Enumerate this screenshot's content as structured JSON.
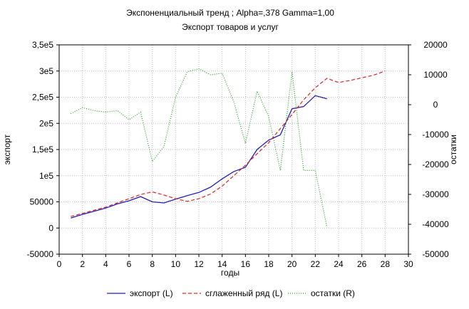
{
  "chart_data": {
    "type": "line",
    "title": "Экспоненциальный тренд ; Alpha=,378 Gamma=1,00",
    "subtitle": "Экспорт товаров и услуг",
    "xlabel": "годы",
    "ylabel_left": "экспорт",
    "ylabel_right": "остатки",
    "xlim": [
      0,
      30
    ],
    "ylim_left": [
      -50000,
      350000
    ],
    "ylim_right": [
      -50000,
      20000
    ],
    "x_ticks": [
      0,
      2,
      4,
      6,
      8,
      10,
      12,
      14,
      16,
      18,
      20,
      22,
      24,
      26,
      28,
      30
    ],
    "x_tick_labels": [
      "0",
      "2",
      "4",
      "6",
      "8",
      "10",
      "12",
      "14",
      "16",
      "18",
      "20",
      "22",
      "24",
      "26",
      "28",
      "30"
    ],
    "y_left_ticks": [
      -50000,
      0,
      50000,
      100000,
      150000,
      200000,
      250000,
      300000,
      350000
    ],
    "y_left_tick_labels": [
      "-50000",
      "0",
      "50000",
      "1e5",
      "1,5e5",
      "2e5",
      "2,5e5",
      "3e5",
      "3,5e5"
    ],
    "y_right_ticks": [
      -50000,
      -40000,
      -30000,
      -20000,
      -10000,
      0,
      10000,
      20000
    ],
    "y_right_tick_labels": [
      "-50000",
      "-40000",
      "-30000",
      "-20000",
      "-10000",
      "0",
      "10000",
      "20000"
    ],
    "grid": true,
    "legend_position": "bottom",
    "series": [
      {
        "name": "экспорт (L)",
        "axis": "left",
        "color": "#2020c0",
        "style": "solid",
        "x": [
          1,
          2,
          3,
          4,
          5,
          6,
          7,
          8,
          9,
          10,
          11,
          12,
          13,
          14,
          15,
          16,
          17,
          18,
          19,
          20,
          21,
          22,
          23
        ],
        "values": [
          19000,
          26000,
          32000,
          38000,
          46000,
          52000,
          60000,
          50000,
          48000,
          55000,
          62000,
          68000,
          78000,
          94000,
          108000,
          116000,
          150000,
          168000,
          178000,
          228000,
          232000,
          253000,
          247000
        ]
      },
      {
        "name": "сглаженный ряд (L)",
        "axis": "left",
        "color": "#e02020",
        "style": "dashed",
        "x": [
          1,
          2,
          3,
          4,
          5,
          6,
          7,
          8,
          9,
          10,
          11,
          12,
          13,
          14,
          15,
          16,
          17,
          18,
          19,
          20,
          21,
          22,
          23,
          24,
          25,
          26,
          27,
          28
        ],
        "values": [
          22000,
          28000,
          34000,
          40000,
          48000,
          56000,
          64000,
          69000,
          63000,
          56000,
          51000,
          56000,
          65000,
          80000,
          100000,
          120000,
          142000,
          163000,
          190000,
          217000,
          245000,
          268000,
          286000,
          278000,
          282000,
          287000,
          292000,
          300000
        ]
      },
      {
        "name": "остатки (R)",
        "axis": "right",
        "color": "#20a020",
        "style": "dotted",
        "x": [
          1,
          2,
          3,
          4,
          5,
          6,
          7,
          8,
          9,
          10,
          11,
          12,
          13,
          14,
          15,
          16,
          17,
          18,
          19,
          20,
          21,
          22,
          23
        ],
        "values": [
          -3000,
          -1000,
          -2000,
          -2500,
          -2000,
          -5000,
          -2500,
          -19000,
          -14000,
          2500,
          11000,
          12000,
          10000,
          10500,
          1000,
          -13000,
          4500,
          -4000,
          -22000,
          11000,
          -22000,
          -22000,
          -41000
        ]
      }
    ]
  }
}
